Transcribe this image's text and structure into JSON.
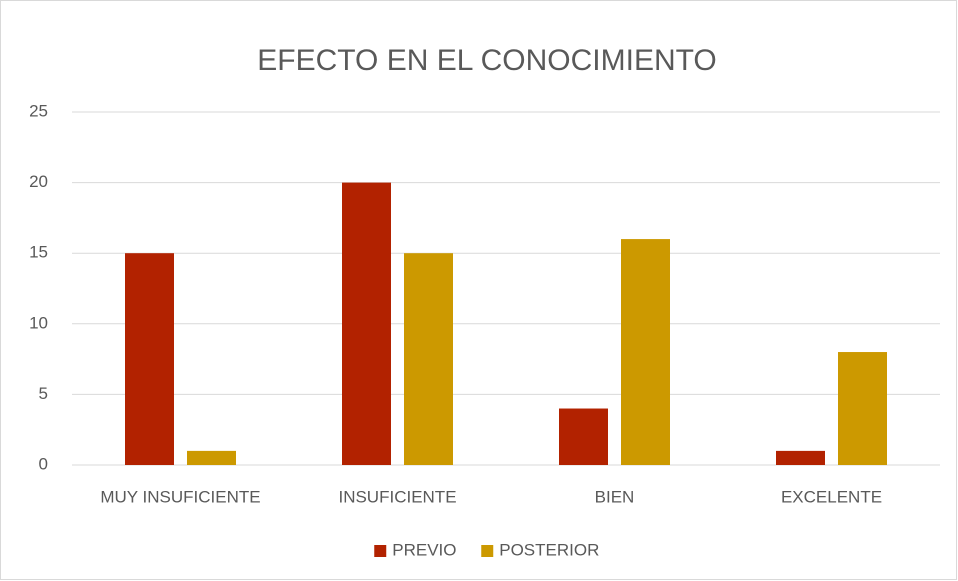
{
  "chart_data": {
    "type": "bar",
    "title": "EFECTO EN EL CONOCIMIENTO",
    "categories": [
      "MUY INSUFICIENTE",
      "INSUFICIENTE",
      "BIEN",
      "EXCELENTE"
    ],
    "series": [
      {
        "name": "PREVIO",
        "color": "#b22200",
        "values": [
          15,
          20,
          4,
          1
        ]
      },
      {
        "name": "POSTERIOR",
        "color": "#cc9900",
        "values": [
          1,
          15,
          16,
          8
        ]
      }
    ],
    "ylim": [
      0,
      25
    ],
    "yticks": [
      0,
      5,
      10,
      15,
      20,
      25
    ],
    "grid": true,
    "legend": "bottom"
  }
}
